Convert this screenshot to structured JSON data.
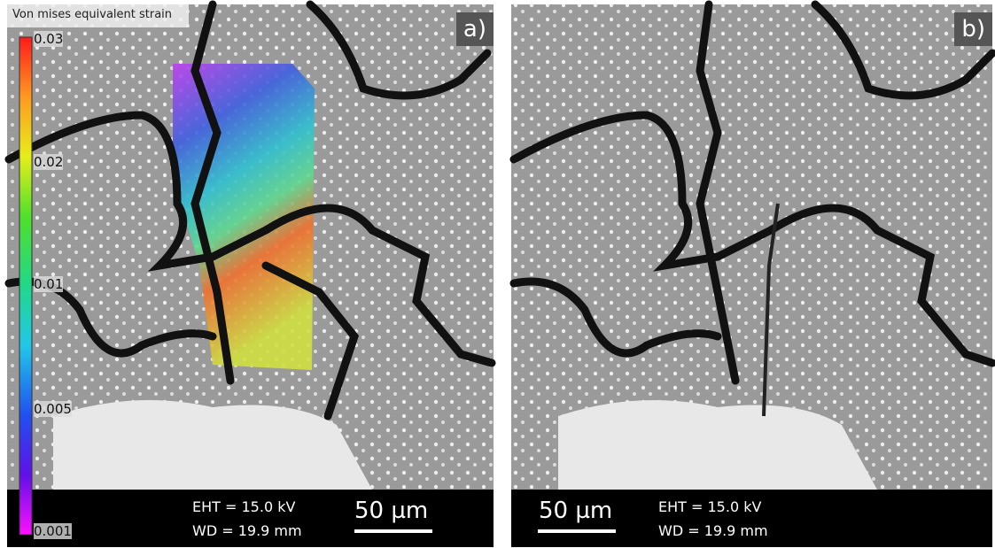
{
  "colorbar": {
    "title": "Von mises equivalent strain",
    "ticks": [
      "0.03",
      "0.02",
      "0.01",
      "0.005",
      "0.001"
    ]
  },
  "panels": [
    {
      "label": "a)",
      "eht": "EHT = 15.0 kV",
      "wd": "WD = 19.9 mm",
      "scale_bar": "50 µm"
    },
    {
      "label": "b)",
      "eht": "EHT = 15.0 kV",
      "wd": "WD = 19.9 mm",
      "scale_bar": "50 µm"
    }
  ]
}
